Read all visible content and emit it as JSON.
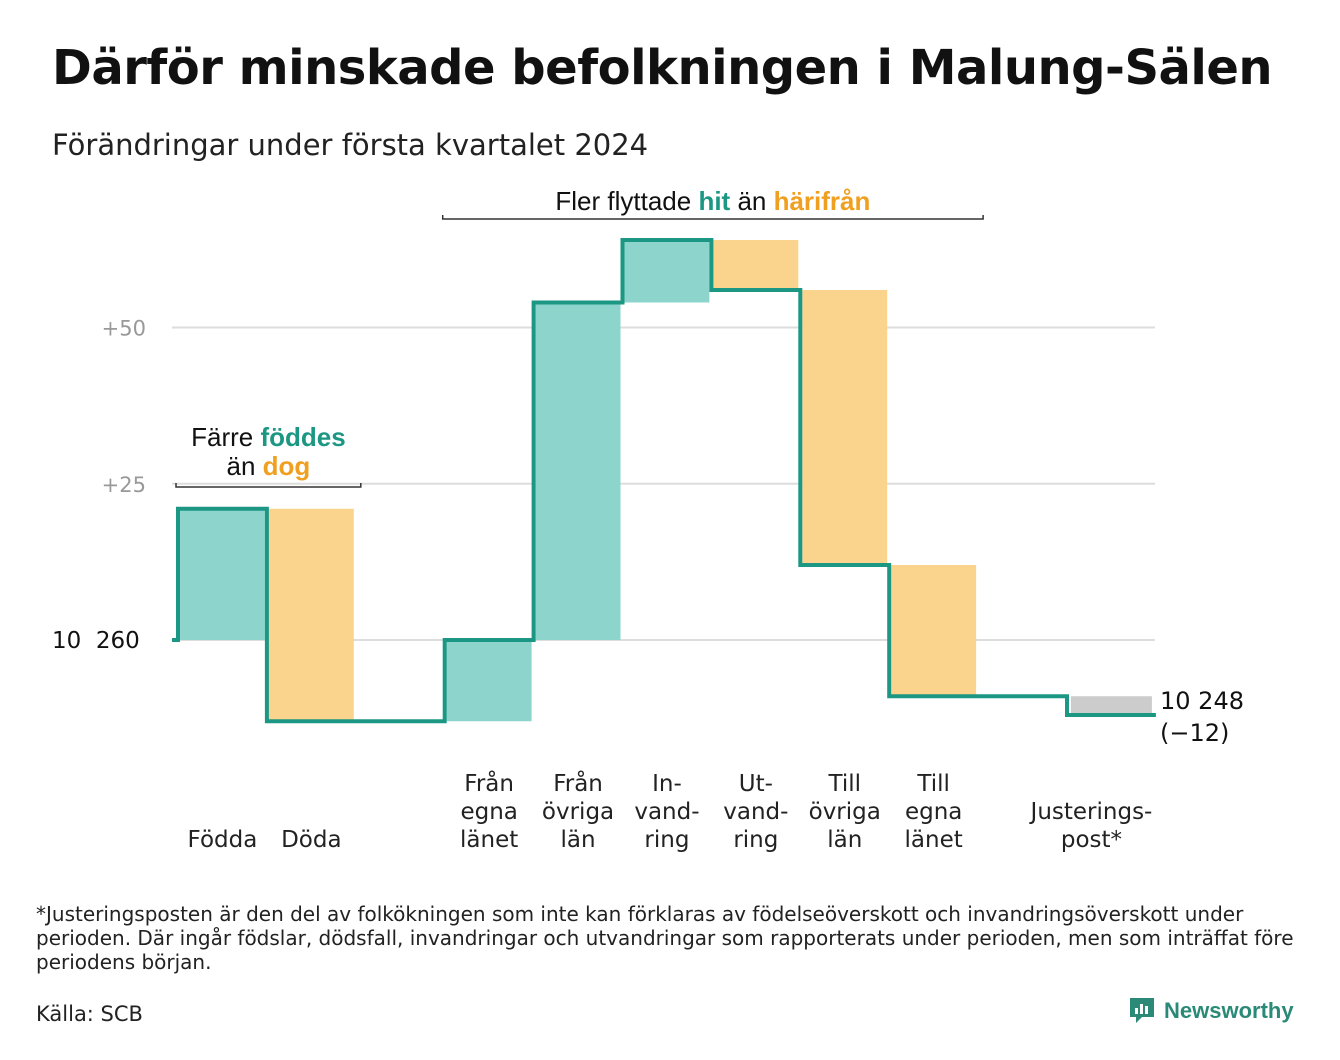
{
  "title": "Därför minskade befolkningen i Malung-Sälen",
  "subtitle": "Förändringar under första kvartalet 2024",
  "footnote": "*Justeringsposten är den del av folkökningen som inte kan förklaras av födelseöverskott och invandringsöverskott under perioden. Där ingår födslar, dödsfall, invandringar och utvandringar som rapporterats under perioden, men som inträffat före periodens början.",
  "source": "Källa: SCB",
  "brand": {
    "name": "Newsworthy",
    "icon": "newsworthy-logo-icon"
  },
  "colors": {
    "line": "#1b9783",
    "increase": "#8dd5cc",
    "decrease": "#fad48c",
    "adjustment": "#cccccc",
    "grid": "#dddddd",
    "tick_text": "#999999",
    "annot_green": "#1b9783",
    "annot_orange": "#f0a020"
  },
  "chart_data": {
    "type": "waterfall",
    "start_value": 10260,
    "start_label": "10  260",
    "end_label": "10 248",
    "end_change": "(−12)",
    "ytick_values": [
      0,
      25,
      50
    ],
    "yticks": [
      "",
      "+25",
      "+50"
    ],
    "ylim": [
      -15,
      70
    ],
    "grid": true,
    "steps": [
      {
        "label": [
          "Födda"
        ],
        "delta": 21,
        "kind": "increase"
      },
      {
        "label": [
          "Döda"
        ],
        "delta": -34,
        "kind": "decrease"
      },
      {
        "label": [],
        "delta": 0,
        "kind": "spacer"
      },
      {
        "label": [
          "Från",
          "egna",
          "länet"
        ],
        "delta": 13,
        "kind": "increase"
      },
      {
        "label": [
          "Från",
          "övriga",
          "län"
        ],
        "delta": 54,
        "kind": "increase"
      },
      {
        "label": [
          "In-",
          "vand-",
          "ring"
        ],
        "delta": 10,
        "kind": "increase"
      },
      {
        "label": [
          "Ut-",
          "vand-",
          "ring"
        ],
        "delta": -8,
        "kind": "decrease"
      },
      {
        "label": [
          "Till",
          "övriga",
          "län"
        ],
        "delta": -44,
        "kind": "decrease"
      },
      {
        "label": [
          "Till",
          "egna",
          "länet"
        ],
        "delta": -21,
        "kind": "decrease"
      },
      {
        "label": [],
        "delta": 0,
        "kind": "spacer"
      },
      {
        "label": [
          "Justerings-",
          "post*"
        ],
        "delta": -3,
        "kind": "adjustment"
      }
    ],
    "annotations": [
      {
        "name": "births-annotation",
        "line1": [
          {
            "text": "Färre ",
            "color": "dark"
          },
          {
            "text": "föddes",
            "color": "green"
          }
        ],
        "line2": [
          {
            "text": "än ",
            "color": "dark"
          },
          {
            "text": "dog",
            "color": "orange"
          }
        ],
        "span": [
          0,
          1
        ]
      },
      {
        "name": "migration-annotation",
        "line1": [
          {
            "text": "Fler flyttade ",
            "color": "dark"
          },
          {
            "text": "hit",
            "color": "green"
          },
          {
            "text": " än ",
            "color": "dark"
          },
          {
            "text": "härifrån",
            "color": "orange"
          }
        ],
        "span": [
          3,
          8
        ]
      }
    ]
  }
}
